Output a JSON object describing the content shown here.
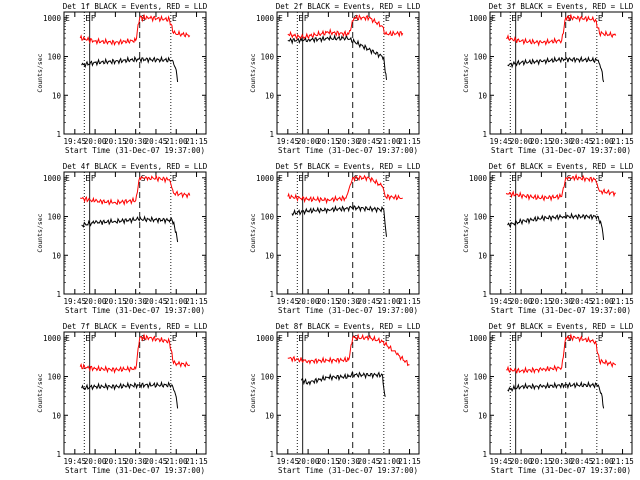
{
  "chart_data": [
    {
      "type": "line",
      "title": "Det 1f BLACK = Events, RED = LLD",
      "ylabel": "Counts/sec",
      "xlabel": "Start Time (31-Dec-07 19:37:00)",
      "x_ticks": [
        "19:45",
        "20:00",
        "20:15",
        "20:30",
        "20:45",
        "21:00",
        "21:15"
      ],
      "y_ticks": [
        "1",
        "10",
        "100",
        "1000"
      ],
      "ylim": [
        1,
        1000
      ],
      "log_y": true,
      "markers": [
        "E",
        "F",
        "S",
        "E"
      ],
      "series": [
        {
          "color": "#000000",
          "points": [
            [
              "19:50",
              60
            ],
            [
              "20:00",
              70
            ],
            [
              "20:15",
              75
            ],
            [
              "20:32",
              85
            ],
            [
              "20:57",
              80
            ],
            [
              "21:00",
              45
            ],
            [
              "21:01",
              22
            ]
          ]
        },
        {
          "color": "#ff0000",
          "points": [
            [
              "19:49",
              300
            ],
            [
              "20:00",
              250
            ],
            [
              "20:15",
              230
            ],
            [
              "20:30",
              260
            ],
            [
              "20:33",
              1000
            ],
            [
              "20:40",
              1000
            ],
            [
              "20:55",
              900
            ],
            [
              "20:58",
              400
            ],
            [
              "21:10",
              350
            ]
          ]
        }
      ]
    },
    {
      "type": "line",
      "title": "Det 2f BLACK = Events, RED = LLD",
      "ylabel": "Counts/sec",
      "xlabel": "Start Time (31-Dec-07 19:37:00)",
      "x_ticks": [
        "19:45",
        "20:00",
        "20:15",
        "20:30",
        "20:45",
        "21:00",
        "21:15"
      ],
      "y_ticks": [
        "1",
        "10",
        "100",
        "1000"
      ],
      "ylim": [
        1,
        1000
      ],
      "log_y": true,
      "markers": [
        "E",
        "F",
        "S",
        "E"
      ],
      "series": [
        {
          "color": "#000000",
          "points": [
            [
              "19:45",
              260
            ],
            [
              "20:00",
              270
            ],
            [
              "20:15",
              290
            ],
            [
              "20:29",
              300
            ],
            [
              "20:56",
              95
            ],
            [
              "20:57",
              40
            ],
            [
              "20:58",
              25
            ]
          ]
        },
        {
          "color": "#ff0000",
          "points": [
            [
              "19:45",
              380
            ],
            [
              "19:55",
              310
            ],
            [
              "20:15",
              420
            ],
            [
              "20:30",
              380
            ],
            [
              "20:34",
              1000
            ],
            [
              "20:45",
              1000
            ],
            [
              "20:55",
              600
            ],
            [
              "20:57",
              380
            ],
            [
              "21:10",
              400
            ]
          ]
        }
      ]
    },
    {
      "type": "line",
      "title": "Det 3f BLACK = Events, RED = LLD",
      "ylabel": "Counts/sec",
      "xlabel": "Start Time (31-Dec-07 19:37:00)",
      "x_ticks": [
        "19:45",
        "20:00",
        "20:15",
        "20:30",
        "20:45",
        "21:00",
        "21:15"
      ],
      "y_ticks": [
        "1",
        "10",
        "100",
        "1000"
      ],
      "ylim": [
        1,
        1000
      ],
      "log_y": true,
      "markers": [
        "E",
        "F",
        "S",
        "E"
      ],
      "series": [
        {
          "color": "#000000",
          "points": [
            [
              "19:50",
              60
            ],
            [
              "20:00",
              70
            ],
            [
              "20:15",
              75
            ],
            [
              "20:32",
              85
            ],
            [
              "20:57",
              80
            ],
            [
              "21:00",
              40
            ],
            [
              "21:01",
              22
            ]
          ]
        },
        {
          "color": "#ff0000",
          "points": [
            [
              "19:49",
              300
            ],
            [
              "20:00",
              250
            ],
            [
              "20:15",
              230
            ],
            [
              "20:30",
              260
            ],
            [
              "20:33",
              1000
            ],
            [
              "20:40",
              1000
            ],
            [
              "20:55",
              900
            ],
            [
              "20:58",
              400
            ],
            [
              "21:10",
              350
            ]
          ]
        }
      ]
    },
    {
      "type": "line",
      "title": "Det 4f BLACK = Events, RED = LLD",
      "ylabel": "Counts/sec",
      "xlabel": "Start Time (31-Dec-07 19:37:00)",
      "x_ticks": [
        "19:45",
        "20:00",
        "20:15",
        "20:30",
        "20:45",
        "21:00",
        "21:15"
      ],
      "y_ticks": [
        "1",
        "10",
        "100",
        "1000"
      ],
      "ylim": [
        1,
        1000
      ],
      "log_y": true,
      "markers": [
        "E",
        "F",
        "S",
        "E"
      ],
      "series": [
        {
          "color": "#000000",
          "points": [
            [
              "19:50",
              60
            ],
            [
              "20:00",
              70
            ],
            [
              "20:15",
              75
            ],
            [
              "20:32",
              85
            ],
            [
              "20:57",
              80
            ],
            [
              "21:00",
              40
            ],
            [
              "21:01",
              22
            ]
          ]
        },
        {
          "color": "#ff0000",
          "points": [
            [
              "19:49",
              300
            ],
            [
              "20:00",
              250
            ],
            [
              "20:15",
              230
            ],
            [
              "20:30",
              260
            ],
            [
              "20:33",
              1000
            ],
            [
              "20:40",
              1000
            ],
            [
              "20:55",
              900
            ],
            [
              "20:58",
              400
            ],
            [
              "21:10",
              350
            ]
          ]
        }
      ]
    },
    {
      "type": "line",
      "title": "Det 5f BLACK = Events, RED = LLD",
      "ylabel": "Counts/sec",
      "xlabel": "Start Time (31-Dec-07 19:37:00)",
      "x_ticks": [
        "19:45",
        "20:00",
        "20:15",
        "20:30",
        "20:45",
        "21:00",
        "21:15"
      ],
      "y_ticks": [
        "1",
        "10",
        "100",
        "1000"
      ],
      "ylim": [
        1,
        1000
      ],
      "log_y": true,
      "markers": [
        "E",
        "F",
        "S",
        "E"
      ],
      "series": [
        {
          "color": "#000000",
          "points": [
            [
              "19:48",
              120
            ],
            [
              "20:00",
              140
            ],
            [
              "20:15",
              150
            ],
            [
              "20:28",
              160
            ],
            [
              "20:32",
              170
            ],
            [
              "20:56",
              150
            ],
            [
              "20:57",
              60
            ],
            [
              "20:58",
              30
            ]
          ]
        },
        {
          "color": "#ff0000",
          "points": [
            [
              "19:45",
              330
            ],
            [
              "20:00",
              280
            ],
            [
              "20:15",
              270
            ],
            [
              "20:28",
              300
            ],
            [
              "20:33",
              1000
            ],
            [
              "20:45",
              1000
            ],
            [
              "20:55",
              600
            ],
            [
              "20:57",
              330
            ],
            [
              "21:10",
              300
            ]
          ]
        }
      ]
    },
    {
      "type": "line",
      "title": "Det 6f BLACK = Events, RED = LLD",
      "ylabel": "Counts/sec",
      "xlabel": "Start Time (31-Dec-07 19:37:00)",
      "x_ticks": [
        "19:45",
        "20:00",
        "20:15",
        "20:30",
        "20:45",
        "21:00",
        "21:15"
      ],
      "y_ticks": [
        "1",
        "10",
        "100",
        "1000"
      ],
      "ylim": [
        1,
        1000
      ],
      "log_y": true,
      "markers": [
        "E",
        "F",
        "S",
        "E"
      ],
      "series": [
        {
          "color": "#000000",
          "points": [
            [
              "19:50",
              60
            ],
            [
              "20:00",
              75
            ],
            [
              "20:15",
              90
            ],
            [
              "20:32",
              100
            ],
            [
              "20:57",
              100
            ],
            [
              "21:00",
              50
            ],
            [
              "21:01",
              25
            ]
          ]
        },
        {
          "color": "#ff0000",
          "points": [
            [
              "19:49",
              400
            ],
            [
              "20:00",
              350
            ],
            [
              "20:15",
              300
            ],
            [
              "20:30",
              330
            ],
            [
              "20:33",
              1000
            ],
            [
              "20:40",
              1000
            ],
            [
              "20:55",
              900
            ],
            [
              "20:58",
              450
            ],
            [
              "21:10",
              400
            ]
          ]
        }
      ]
    },
    {
      "type": "line",
      "title": "Det 7f BLACK = Events, RED = LLD",
      "ylabel": "Counts/sec",
      "xlabel": "Start Time (31-Dec-07 19:37:00)",
      "x_ticks": [
        "19:45",
        "20:00",
        "20:15",
        "20:30",
        "20:45",
        "21:00",
        "21:15"
      ],
      "y_ticks": [
        "1",
        "10",
        "100",
        "1000"
      ],
      "ylim": [
        1,
        1000
      ],
      "log_y": true,
      "markers": [
        "E",
        "F",
        "S",
        "E"
      ],
      "series": [
        {
          "color": "#000000",
          "points": [
            [
              "19:50",
              50
            ],
            [
              "20:00",
              55
            ],
            [
              "20:15",
              55
            ],
            [
              "20:32",
              60
            ],
            [
              "20:57",
              60
            ],
            [
              "21:00",
              30
            ],
            [
              "21:01",
              15
            ]
          ]
        },
        {
          "color": "#ff0000",
          "points": [
            [
              "19:49",
              180
            ],
            [
              "20:00",
              160
            ],
            [
              "20:15",
              150
            ],
            [
              "20:30",
              160
            ],
            [
              "20:33",
              1000
            ],
            [
              "20:40",
              1000
            ],
            [
              "20:55",
              800
            ],
            [
              "20:58",
              220
            ],
            [
              "21:10",
              200
            ]
          ]
        }
      ]
    },
    {
      "type": "line",
      "title": "Det 8f BLACK = Events, RED = LLD",
      "ylabel": "Counts/sec",
      "xlabel": "Start Time (31-Dec-07 19:37:00)",
      "x_ticks": [
        "19:45",
        "20:00",
        "20:15",
        "20:30",
        "20:45",
        "21:00",
        "21:15"
      ],
      "y_ticks": [
        "1",
        "10",
        "100",
        "1000"
      ],
      "ylim": [
        1,
        1000
      ],
      "log_y": true,
      "markers": [
        "E",
        "F",
        "S",
        "E"
      ],
      "series": [
        {
          "color": "#000000",
          "points": [
            [
              "19:55",
              80
            ],
            [
              "20:00",
              70
            ],
            [
              "20:15",
              95
            ],
            [
              "20:30",
              100
            ],
            [
              "20:32",
              110
            ],
            [
              "20:55",
              110
            ],
            [
              "20:56",
              50
            ],
            [
              "20:57",
              30
            ]
          ]
        },
        {
          "color": "#ff0000",
          "points": [
            [
              "19:45",
              300
            ],
            [
              "20:00",
              250
            ],
            [
              "20:15",
              260
            ],
            [
              "20:30",
              270
            ],
            [
              "20:33",
              1000
            ],
            [
              "20:45",
              1000
            ],
            [
              "20:55",
              800
            ],
            [
              "21:05",
              400
            ],
            [
              "21:15",
              200
            ]
          ]
        }
      ]
    },
    {
      "type": "line",
      "title": "Det 9f BLACK = Events, RED = LLD",
      "ylabel": "Counts/sec",
      "xlabel": "Start Time (31-Dec-07 19:37:00)",
      "x_ticks": [
        "19:45",
        "20:00",
        "20:15",
        "20:30",
        "20:45",
        "21:00",
        "21:15"
      ],
      "y_ticks": [
        "1",
        "10",
        "100",
        "1000"
      ],
      "ylim": [
        1,
        1000
      ],
      "log_y": true,
      "markers": [
        "E",
        "F",
        "S",
        "E"
      ],
      "series": [
        {
          "color": "#000000",
          "points": [
            [
              "19:50",
              45
            ],
            [
              "20:00",
              55
            ],
            [
              "20:15",
              55
            ],
            [
              "20:32",
              60
            ],
            [
              "20:57",
              60
            ],
            [
              "21:00",
              30
            ],
            [
              "21:01",
              15
            ]
          ]
        },
        {
          "color": "#ff0000",
          "points": [
            [
              "19:49",
              150
            ],
            [
              "20:00",
              140
            ],
            [
              "20:15",
              150
            ],
            [
              "20:30",
              170
            ],
            [
              "20:33",
              1000
            ],
            [
              "20:40",
              1000
            ],
            [
              "20:55",
              800
            ],
            [
              "20:58",
              250
            ],
            [
              "21:10",
              200
            ]
          ]
        }
      ]
    }
  ]
}
